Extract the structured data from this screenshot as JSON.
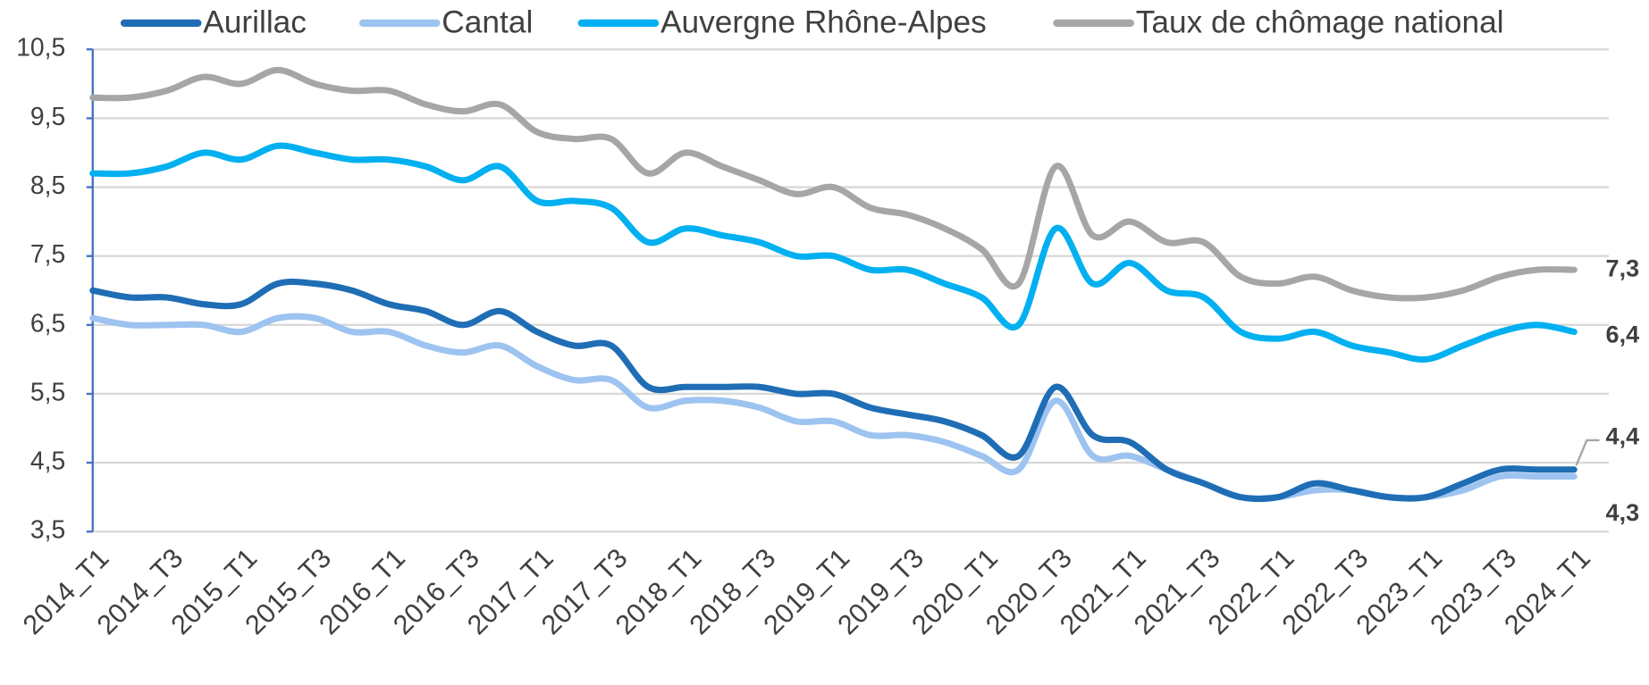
{
  "chart_data": {
    "type": "line",
    "categories": [
      "2014_T1",
      null,
      "2014_T3",
      null,
      "2015_T1",
      null,
      "2015_T3",
      null,
      "2016_T1",
      null,
      "2016_T3",
      null,
      "2017_T1",
      null,
      "2017_T3",
      null,
      "2018_T1",
      null,
      "2018_T3",
      null,
      "2019_T1",
      null,
      "2019_T3",
      null,
      "2020_T1",
      null,
      "2020_T3",
      null,
      "2021_T1",
      null,
      "2021_T3",
      null,
      "2022_T1",
      null,
      "2022_T3",
      null,
      "2023_T1",
      null,
      "2023_T3",
      null,
      "2024_T1"
    ],
    "series": [
      {
        "name": "Aurillac",
        "color": "#1f6db5",
        "label_color": "#1f3864",
        "values": [
          7.0,
          6.9,
          6.9,
          6.8,
          6.8,
          7.1,
          7.1,
          7.0,
          6.8,
          6.7,
          6.5,
          6.7,
          6.4,
          6.2,
          6.2,
          5.6,
          5.6,
          5.6,
          5.6,
          5.5,
          5.5,
          5.3,
          5.2,
          5.1,
          4.9,
          4.6,
          5.6,
          4.9,
          4.8,
          4.4,
          4.2,
          4.0,
          4.0,
          4.2,
          4.1,
          4.0,
          4.0,
          4.2,
          4.4,
          4.4,
          4.4
        ],
        "value_labels": [
          null,
          null,
          null,
          null,
          null,
          null,
          null,
          null,
          null,
          null,
          null,
          null,
          null,
          null,
          null,
          null,
          null,
          null,
          null,
          null,
          null,
          null,
          null,
          null,
          null,
          null,
          null,
          null,
          null,
          null,
          null,
          null,
          null,
          null,
          null,
          null,
          null,
          null,
          null,
          null,
          "4,4"
        ]
      },
      {
        "name": "Cantal",
        "color": "#9dc3f0",
        "label_color": "#9dc3f0",
        "values": [
          6.6,
          6.5,
          6.5,
          6.5,
          6.4,
          6.6,
          6.6,
          6.4,
          6.4,
          6.2,
          6.1,
          6.2,
          5.9,
          5.7,
          5.7,
          5.3,
          5.4,
          5.4,
          5.3,
          5.1,
          5.1,
          4.9,
          4.9,
          4.8,
          4.6,
          4.4,
          5.4,
          4.6,
          4.6,
          4.4,
          4.2,
          4.0,
          4.0,
          4.1,
          4.1,
          4.0,
          4.0,
          4.1,
          4.3,
          4.3,
          4.3
        ],
        "value_labels": [
          null,
          null,
          null,
          null,
          null,
          null,
          null,
          null,
          null,
          null,
          null,
          null,
          null,
          null,
          null,
          null,
          null,
          null,
          null,
          null,
          null,
          null,
          null,
          null,
          null,
          null,
          null,
          null,
          null,
          null,
          null,
          null,
          null,
          null,
          null,
          null,
          null,
          null,
          null,
          null,
          "4,3"
        ]
      },
      {
        "name": "Auvergne Rhône-Alpes",
        "color": "#00b0f0",
        "label_color": "#00b0f0",
        "values": [
          8.7,
          8.7,
          8.8,
          9.0,
          8.9,
          9.1,
          9.0,
          8.9,
          8.9,
          8.8,
          8.6,
          8.8,
          8.3,
          8.3,
          8.2,
          7.7,
          7.9,
          7.8,
          7.7,
          7.5,
          7.5,
          7.3,
          7.3,
          7.1,
          6.9,
          6.5,
          7.9,
          7.1,
          7.4,
          7.0,
          6.9,
          6.4,
          6.3,
          6.4,
          6.2,
          6.1,
          6.0,
          6.2,
          6.4,
          6.5,
          6.4
        ],
        "value_labels": [
          null,
          null,
          null,
          null,
          null,
          null,
          null,
          null,
          null,
          null,
          null,
          null,
          null,
          null,
          null,
          null,
          null,
          null,
          null,
          null,
          null,
          null,
          null,
          null,
          null,
          null,
          null,
          null,
          null,
          null,
          null,
          null,
          null,
          null,
          null,
          null,
          null,
          null,
          null,
          null,
          "6,4"
        ]
      },
      {
        "name": "Taux de chômage national",
        "color": "#a6a6a6",
        "label_color": "#8c8c8c",
        "values": [
          9.8,
          9.8,
          9.9,
          10.1,
          10.0,
          10.2,
          10.0,
          9.9,
          9.9,
          9.7,
          9.6,
          9.7,
          9.3,
          9.2,
          9.2,
          8.7,
          9.0,
          8.8,
          8.6,
          8.4,
          8.5,
          8.2,
          8.1,
          7.9,
          7.6,
          7.1,
          8.8,
          7.8,
          8.0,
          7.7,
          7.7,
          7.2,
          7.1,
          7.2,
          7.0,
          6.9,
          6.9,
          7.0,
          7.2,
          7.3,
          7.3
        ],
        "value_labels": [
          null,
          null,
          null,
          null,
          null,
          null,
          null,
          null,
          null,
          null,
          null,
          null,
          null,
          null,
          null,
          null,
          null,
          null,
          null,
          null,
          null,
          null,
          null,
          null,
          null,
          null,
          null,
          null,
          null,
          null,
          null,
          null,
          null,
          null,
          null,
          null,
          null,
          null,
          null,
          null,
          "7,3"
        ]
      }
    ],
    "ylim": [
      3.5,
      10.5
    ],
    "yticks": [
      {
        "value": 3.5,
        "label": "3,5"
      },
      {
        "value": 4.5,
        "label": "4,5"
      },
      {
        "value": 5.5,
        "label": "5,5"
      },
      {
        "value": 6.5,
        "label": "6,5"
      },
      {
        "value": 7.5,
        "label": "7,5"
      },
      {
        "value": 8.5,
        "label": "8,5"
      },
      {
        "value": 9.5,
        "label": "9,5"
      },
      {
        "value": 10.5,
        "label": "10,5"
      }
    ],
    "grid": true,
    "legend": "top"
  }
}
